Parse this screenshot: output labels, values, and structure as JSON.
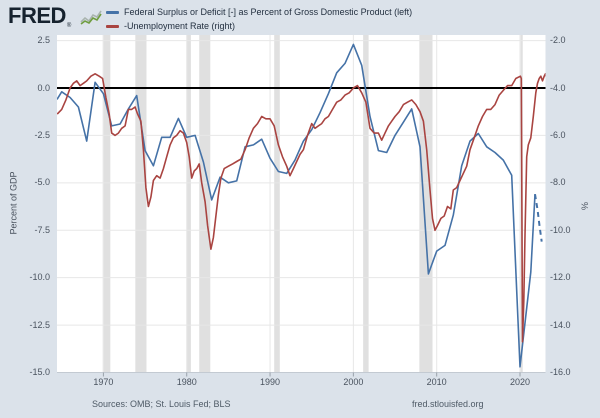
{
  "header": {
    "logo_text": "FRED",
    "logo_reg": "®",
    "legend": [
      {
        "label": "Federal Surplus or Deficit [-] as Percent of Gross Domestic Product (left)"
      },
      {
        "label": "-Unemployment Rate (right)"
      }
    ]
  },
  "footer": {
    "sources": "Sources: OMB; St. Louis Fed; BLS",
    "site": "fred.stlouisfed.org"
  },
  "colors": {
    "background": "#dbe2ea",
    "plot_background": "#ffffff",
    "gridline": "#e7e7e7",
    "recession_band": "#e0e0e0",
    "zero_line": "#000000",
    "deficit_line": "#4572a7",
    "unemployment_line": "#a94441",
    "axis_text": "#49525e"
  },
  "chart_data": {
    "type": "line",
    "left_axis": {
      "label": "Percent of GDP",
      "range": [
        2.5,
        -15.0
      ],
      "ticks": [
        {
          "v": 2.5,
          "label": "2.5"
        },
        {
          "v": 0.0,
          "label": "0.0"
        },
        {
          "v": -2.5,
          "label": "-2.5"
        },
        {
          "v": -5.0,
          "label": "-5.0"
        },
        {
          "v": -7.5,
          "label": "-7.5"
        },
        {
          "v": -10.0,
          "label": "-10.0"
        },
        {
          "v": -12.5,
          "label": "-12.5"
        },
        {
          "v": -15.0,
          "label": "-15.0"
        }
      ]
    },
    "right_axis": {
      "label": "%",
      "range": [
        -2.0,
        -16.0
      ],
      "ticks": [
        {
          "v": -2.0,
          "label": "-2.0"
        },
        {
          "v": -4.0,
          "label": "-4.0"
        },
        {
          "v": -6.0,
          "label": "-6.0"
        },
        {
          "v": -8.0,
          "label": "-8.0"
        },
        {
          "v": -10.0,
          "label": "-10.0"
        },
        {
          "v": -12.0,
          "label": "-12.0"
        },
        {
          "v": -14.0,
          "label": "-14.0"
        },
        {
          "v": -16.0,
          "label": "-16.0"
        }
      ]
    },
    "x_axis": {
      "range": [
        1964.43,
        2023.06
      ],
      "ticks": [
        {
          "v": 1970,
          "label": "1970"
        },
        {
          "v": 1980,
          "label": "1980"
        },
        {
          "v": 1990,
          "label": "1990"
        },
        {
          "v": 2000,
          "label": "2000"
        },
        {
          "v": 2010,
          "label": "2010"
        },
        {
          "v": 2020,
          "label": "2020"
        }
      ]
    },
    "zero_line_left_value": 0,
    "grid": true,
    "legend_position": "top",
    "recessions": [
      [
        1969.92,
        1970.83
      ],
      [
        1973.83,
        1975.17
      ],
      [
        1980.0,
        1980.5
      ],
      [
        1981.5,
        1982.83
      ],
      [
        1990.5,
        1991.17
      ],
      [
        2001.17,
        2001.83
      ],
      [
        2007.92,
        2009.5
      ],
      [
        2020.08,
        2020.33
      ]
    ],
    "series": [
      {
        "name": "Federal Surplus or Deficit [-] as Percent of Gross Domestic Product",
        "axis": "left",
        "color": "#4572a7",
        "points": [
          [
            1964.43,
            -0.6
          ],
          [
            1965,
            -0.2
          ],
          [
            1966,
            -0.5
          ],
          [
            1967,
            -1.0
          ],
          [
            1968,
            -2.8
          ],
          [
            1969,
            0.3
          ],
          [
            1970,
            -0.3
          ],
          [
            1971,
            -2.0
          ],
          [
            1972,
            -1.9
          ],
          [
            1973,
            -1.1
          ],
          [
            1974,
            -0.4
          ],
          [
            1975,
            -3.3
          ],
          [
            1976,
            -4.1
          ],
          [
            1977,
            -2.6
          ],
          [
            1978,
            -2.6
          ],
          [
            1979,
            -1.6
          ],
          [
            1980,
            -2.6
          ],
          [
            1981,
            -2.5
          ],
          [
            1982,
            -3.9
          ],
          [
            1983,
            -5.9
          ],
          [
            1984,
            -4.7
          ],
          [
            1985,
            -5.0
          ],
          [
            1986,
            -4.9
          ],
          [
            1987,
            -3.1
          ],
          [
            1988,
            -3.0
          ],
          [
            1989,
            -2.7
          ],
          [
            1990,
            -3.7
          ],
          [
            1991,
            -4.4
          ],
          [
            1992,
            -4.5
          ],
          [
            1993,
            -3.8
          ],
          [
            1994,
            -2.8
          ],
          [
            1995,
            -2.2
          ],
          [
            1996,
            -1.3
          ],
          [
            1997,
            -0.3
          ],
          [
            1998,
            0.8
          ],
          [
            1999,
            1.3
          ],
          [
            2000,
            2.3
          ],
          [
            2001,
            1.2
          ],
          [
            2002,
            -1.5
          ],
          [
            2003,
            -3.3
          ],
          [
            2004,
            -3.4
          ],
          [
            2005,
            -2.5
          ],
          [
            2006,
            -1.8
          ],
          [
            2007,
            -1.1
          ],
          [
            2008,
            -3.1
          ],
          [
            2009,
            -9.8
          ],
          [
            2010,
            -8.6
          ],
          [
            2011,
            -8.3
          ],
          [
            2012,
            -6.7
          ],
          [
            2013,
            -4.1
          ],
          [
            2014,
            -2.8
          ],
          [
            2015,
            -2.4
          ],
          [
            2016,
            -3.1
          ],
          [
            2017,
            -3.4
          ],
          [
            2018,
            -3.8
          ],
          [
            2019,
            -4.6
          ],
          [
            2020,
            -14.7
          ],
          [
            2021.3,
            -9.7
          ],
          [
            2021.8,
            -5.6
          ]
        ],
        "dash_tail": [
          [
            2021.8,
            -5.6
          ],
          [
            2022.1,
            -6.4
          ],
          [
            2022.35,
            -7.3
          ],
          [
            2022.6,
            -8.1
          ]
        ]
      },
      {
        "name": "-Unemployment Rate",
        "axis": "right",
        "color": "#a94441",
        "points": [
          [
            1964.45,
            -5.1
          ],
          [
            1965,
            -4.9
          ],
          [
            1965.5,
            -4.5
          ],
          [
            1966,
            -4.0
          ],
          [
            1966.4,
            -3.8
          ],
          [
            1966.8,
            -3.7
          ],
          [
            1967.2,
            -3.9
          ],
          [
            1967.6,
            -3.8
          ],
          [
            1968,
            -3.7
          ],
          [
            1968.5,
            -3.5
          ],
          [
            1969,
            -3.4
          ],
          [
            1969.5,
            -3.5
          ],
          [
            1969.9,
            -3.6
          ],
          [
            1970.3,
            -4.4
          ],
          [
            1970.7,
            -5.1
          ],
          [
            1971,
            -5.9
          ],
          [
            1971.4,
            -6.0
          ],
          [
            1971.8,
            -5.9
          ],
          [
            1972.2,
            -5.7
          ],
          [
            1972.6,
            -5.6
          ],
          [
            1973,
            -4.9
          ],
          [
            1973.4,
            -4.9
          ],
          [
            1973.8,
            -4.8
          ],
          [
            1974.1,
            -5.1
          ],
          [
            1974.5,
            -5.4
          ],
          [
            1974.8,
            -6.6
          ],
          [
            1975.1,
            -8.2
          ],
          [
            1975.4,
            -9.0
          ],
          [
            1975.7,
            -8.6
          ],
          [
            1976,
            -7.9
          ],
          [
            1976.4,
            -7.7
          ],
          [
            1976.8,
            -7.8
          ],
          [
            1977.2,
            -7.4
          ],
          [
            1977.6,
            -6.9
          ],
          [
            1978,
            -6.4
          ],
          [
            1978.4,
            -6.1
          ],
          [
            1978.8,
            -6.0
          ],
          [
            1979.2,
            -5.8
          ],
          [
            1979.6,
            -5.9
          ],
          [
            1980,
            -6.3
          ],
          [
            1980.3,
            -6.9
          ],
          [
            1980.6,
            -7.8
          ],
          [
            1980.9,
            -7.5
          ],
          [
            1981.2,
            -7.4
          ],
          [
            1981.5,
            -7.2
          ],
          [
            1981.8,
            -8.0
          ],
          [
            1982.2,
            -8.8
          ],
          [
            1982.5,
            -9.8
          ],
          [
            1982.9,
            -10.8
          ],
          [
            1983.2,
            -10.3
          ],
          [
            1983.5,
            -9.4
          ],
          [
            1983.8,
            -8.5
          ],
          [
            1984.1,
            -7.8
          ],
          [
            1984.5,
            -7.4
          ],
          [
            1985,
            -7.3
          ],
          [
            1985.5,
            -7.2
          ],
          [
            1986,
            -7.1
          ],
          [
            1986.5,
            -7.0
          ],
          [
            1987,
            -6.6
          ],
          [
            1987.5,
            -6.1
          ],
          [
            1988,
            -5.7
          ],
          [
            1988.5,
            -5.5
          ],
          [
            1989,
            -5.2
          ],
          [
            1989.5,
            -5.3
          ],
          [
            1990,
            -5.3
          ],
          [
            1990.5,
            -5.6
          ],
          [
            1991,
            -6.4
          ],
          [
            1991.5,
            -6.9
          ],
          [
            1992,
            -7.3
          ],
          [
            1992.4,
            -7.7
          ],
          [
            1992.8,
            -7.4
          ],
          [
            1993.2,
            -7.1
          ],
          [
            1993.6,
            -6.8
          ],
          [
            1994,
            -6.6
          ],
          [
            1994.5,
            -6.0
          ],
          [
            1995,
            -5.5
          ],
          [
            1995.4,
            -5.7
          ],
          [
            1995.8,
            -5.6
          ],
          [
            1996.2,
            -5.5
          ],
          [
            1996.6,
            -5.3
          ],
          [
            1997,
            -5.2
          ],
          [
            1997.5,
            -4.9
          ],
          [
            1998,
            -4.6
          ],
          [
            1998.5,
            -4.5
          ],
          [
            1999,
            -4.3
          ],
          [
            1999.5,
            -4.2
          ],
          [
            2000,
            -4.0
          ],
          [
            2000.5,
            -3.9
          ],
          [
            2001,
            -4.2
          ],
          [
            2001.5,
            -4.6
          ],
          [
            2002,
            -5.7
          ],
          [
            2002.5,
            -5.9
          ],
          [
            2003,
            -5.9
          ],
          [
            2003.4,
            -6.2
          ],
          [
            2003.8,
            -5.9
          ],
          [
            2004.2,
            -5.6
          ],
          [
            2004.6,
            -5.4
          ],
          [
            2005,
            -5.2
          ],
          [
            2005.5,
            -5.0
          ],
          [
            2006,
            -4.7
          ],
          [
            2006.5,
            -4.6
          ],
          [
            2007,
            -4.5
          ],
          [
            2007.5,
            -4.7
          ],
          [
            2008,
            -5.0
          ],
          [
            2008.4,
            -5.4
          ],
          [
            2008.8,
            -6.6
          ],
          [
            2009.2,
            -8.3
          ],
          [
            2009.5,
            -9.5
          ],
          [
            2009.8,
            -10.0
          ],
          [
            2010.1,
            -9.8
          ],
          [
            2010.5,
            -9.5
          ],
          [
            2010.9,
            -9.4
          ],
          [
            2011.3,
            -9.0
          ],
          [
            2011.7,
            -9.1
          ],
          [
            2012,
            -8.3
          ],
          [
            2012.4,
            -8.2
          ],
          [
            2012.8,
            -7.9
          ],
          [
            2013.2,
            -7.6
          ],
          [
            2013.6,
            -7.3
          ],
          [
            2014,
            -6.6
          ],
          [
            2014.5,
            -6.1
          ],
          [
            2015,
            -5.6
          ],
          [
            2015.5,
            -5.2
          ],
          [
            2016,
            -4.9
          ],
          [
            2016.5,
            -4.9
          ],
          [
            2017,
            -4.7
          ],
          [
            2017.5,
            -4.3
          ],
          [
            2018,
            -4.1
          ],
          [
            2018.5,
            -3.9
          ],
          [
            2019,
            -3.9
          ],
          [
            2019.5,
            -3.6
          ],
          [
            2020.05,
            -3.5
          ],
          [
            2020.15,
            -3.6
          ],
          [
            2020.3,
            -14.7
          ],
          [
            2020.45,
            -13.0
          ],
          [
            2020.6,
            -10.2
          ],
          [
            2020.8,
            -6.9
          ],
          [
            2021,
            -6.4
          ],
          [
            2021.3,
            -6.1
          ],
          [
            2021.6,
            -5.2
          ],
          [
            2021.9,
            -4.2
          ],
          [
            2022.1,
            -3.8
          ],
          [
            2022.3,
            -3.6
          ],
          [
            2022.5,
            -3.5
          ],
          [
            2022.7,
            -3.7
          ],
          [
            2022.9,
            -3.5
          ],
          [
            2023.05,
            -3.4
          ],
          [
            2023.2,
            -3.6
          ],
          [
            2023.35,
            -3.5
          ]
        ]
      }
    ]
  }
}
